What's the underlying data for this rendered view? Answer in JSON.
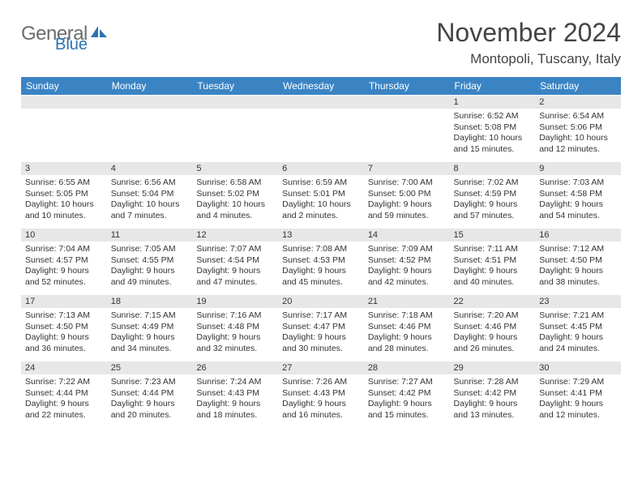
{
  "logo": {
    "general": "General",
    "blue": "Blue",
    "mark_color": "#2d72b5"
  },
  "month_title": "November 2024",
  "location": "Montopoli, Tuscany, Italy",
  "colors": {
    "header_bg": "#3b84c4",
    "header_text": "#ffffff",
    "daynum_bg": "#e7e7e7",
    "text": "#333333",
    "background": "#ffffff"
  },
  "day_headers": [
    "Sunday",
    "Monday",
    "Tuesday",
    "Wednesday",
    "Thursday",
    "Friday",
    "Saturday"
  ],
  "weeks": [
    [
      {
        "num": "",
        "sunrise": "",
        "sunset": "",
        "daylight": ""
      },
      {
        "num": "",
        "sunrise": "",
        "sunset": "",
        "daylight": ""
      },
      {
        "num": "",
        "sunrise": "",
        "sunset": "",
        "daylight": ""
      },
      {
        "num": "",
        "sunrise": "",
        "sunset": "",
        "daylight": ""
      },
      {
        "num": "",
        "sunrise": "",
        "sunset": "",
        "daylight": ""
      },
      {
        "num": "1",
        "sunrise": "Sunrise: 6:52 AM",
        "sunset": "Sunset: 5:08 PM",
        "daylight": "Daylight: 10 hours and 15 minutes."
      },
      {
        "num": "2",
        "sunrise": "Sunrise: 6:54 AM",
        "sunset": "Sunset: 5:06 PM",
        "daylight": "Daylight: 10 hours and 12 minutes."
      }
    ],
    [
      {
        "num": "3",
        "sunrise": "Sunrise: 6:55 AM",
        "sunset": "Sunset: 5:05 PM",
        "daylight": "Daylight: 10 hours and 10 minutes."
      },
      {
        "num": "4",
        "sunrise": "Sunrise: 6:56 AM",
        "sunset": "Sunset: 5:04 PM",
        "daylight": "Daylight: 10 hours and 7 minutes."
      },
      {
        "num": "5",
        "sunrise": "Sunrise: 6:58 AM",
        "sunset": "Sunset: 5:02 PM",
        "daylight": "Daylight: 10 hours and 4 minutes."
      },
      {
        "num": "6",
        "sunrise": "Sunrise: 6:59 AM",
        "sunset": "Sunset: 5:01 PM",
        "daylight": "Daylight: 10 hours and 2 minutes."
      },
      {
        "num": "7",
        "sunrise": "Sunrise: 7:00 AM",
        "sunset": "Sunset: 5:00 PM",
        "daylight": "Daylight: 9 hours and 59 minutes."
      },
      {
        "num": "8",
        "sunrise": "Sunrise: 7:02 AM",
        "sunset": "Sunset: 4:59 PM",
        "daylight": "Daylight: 9 hours and 57 minutes."
      },
      {
        "num": "9",
        "sunrise": "Sunrise: 7:03 AM",
        "sunset": "Sunset: 4:58 PM",
        "daylight": "Daylight: 9 hours and 54 minutes."
      }
    ],
    [
      {
        "num": "10",
        "sunrise": "Sunrise: 7:04 AM",
        "sunset": "Sunset: 4:57 PM",
        "daylight": "Daylight: 9 hours and 52 minutes."
      },
      {
        "num": "11",
        "sunrise": "Sunrise: 7:05 AM",
        "sunset": "Sunset: 4:55 PM",
        "daylight": "Daylight: 9 hours and 49 minutes."
      },
      {
        "num": "12",
        "sunrise": "Sunrise: 7:07 AM",
        "sunset": "Sunset: 4:54 PM",
        "daylight": "Daylight: 9 hours and 47 minutes."
      },
      {
        "num": "13",
        "sunrise": "Sunrise: 7:08 AM",
        "sunset": "Sunset: 4:53 PM",
        "daylight": "Daylight: 9 hours and 45 minutes."
      },
      {
        "num": "14",
        "sunrise": "Sunrise: 7:09 AM",
        "sunset": "Sunset: 4:52 PM",
        "daylight": "Daylight: 9 hours and 42 minutes."
      },
      {
        "num": "15",
        "sunrise": "Sunrise: 7:11 AM",
        "sunset": "Sunset: 4:51 PM",
        "daylight": "Daylight: 9 hours and 40 minutes."
      },
      {
        "num": "16",
        "sunrise": "Sunrise: 7:12 AM",
        "sunset": "Sunset: 4:50 PM",
        "daylight": "Daylight: 9 hours and 38 minutes."
      }
    ],
    [
      {
        "num": "17",
        "sunrise": "Sunrise: 7:13 AM",
        "sunset": "Sunset: 4:50 PM",
        "daylight": "Daylight: 9 hours and 36 minutes."
      },
      {
        "num": "18",
        "sunrise": "Sunrise: 7:15 AM",
        "sunset": "Sunset: 4:49 PM",
        "daylight": "Daylight: 9 hours and 34 minutes."
      },
      {
        "num": "19",
        "sunrise": "Sunrise: 7:16 AM",
        "sunset": "Sunset: 4:48 PM",
        "daylight": "Daylight: 9 hours and 32 minutes."
      },
      {
        "num": "20",
        "sunrise": "Sunrise: 7:17 AM",
        "sunset": "Sunset: 4:47 PM",
        "daylight": "Daylight: 9 hours and 30 minutes."
      },
      {
        "num": "21",
        "sunrise": "Sunrise: 7:18 AM",
        "sunset": "Sunset: 4:46 PM",
        "daylight": "Daylight: 9 hours and 28 minutes."
      },
      {
        "num": "22",
        "sunrise": "Sunrise: 7:20 AM",
        "sunset": "Sunset: 4:46 PM",
        "daylight": "Daylight: 9 hours and 26 minutes."
      },
      {
        "num": "23",
        "sunrise": "Sunrise: 7:21 AM",
        "sunset": "Sunset: 4:45 PM",
        "daylight": "Daylight: 9 hours and 24 minutes."
      }
    ],
    [
      {
        "num": "24",
        "sunrise": "Sunrise: 7:22 AM",
        "sunset": "Sunset: 4:44 PM",
        "daylight": "Daylight: 9 hours and 22 minutes."
      },
      {
        "num": "25",
        "sunrise": "Sunrise: 7:23 AM",
        "sunset": "Sunset: 4:44 PM",
        "daylight": "Daylight: 9 hours and 20 minutes."
      },
      {
        "num": "26",
        "sunrise": "Sunrise: 7:24 AM",
        "sunset": "Sunset: 4:43 PM",
        "daylight": "Daylight: 9 hours and 18 minutes."
      },
      {
        "num": "27",
        "sunrise": "Sunrise: 7:26 AM",
        "sunset": "Sunset: 4:43 PM",
        "daylight": "Daylight: 9 hours and 16 minutes."
      },
      {
        "num": "28",
        "sunrise": "Sunrise: 7:27 AM",
        "sunset": "Sunset: 4:42 PM",
        "daylight": "Daylight: 9 hours and 15 minutes."
      },
      {
        "num": "29",
        "sunrise": "Sunrise: 7:28 AM",
        "sunset": "Sunset: 4:42 PM",
        "daylight": "Daylight: 9 hours and 13 minutes."
      },
      {
        "num": "30",
        "sunrise": "Sunrise: 7:29 AM",
        "sunset": "Sunset: 4:41 PM",
        "daylight": "Daylight: 9 hours and 12 minutes."
      }
    ]
  ]
}
